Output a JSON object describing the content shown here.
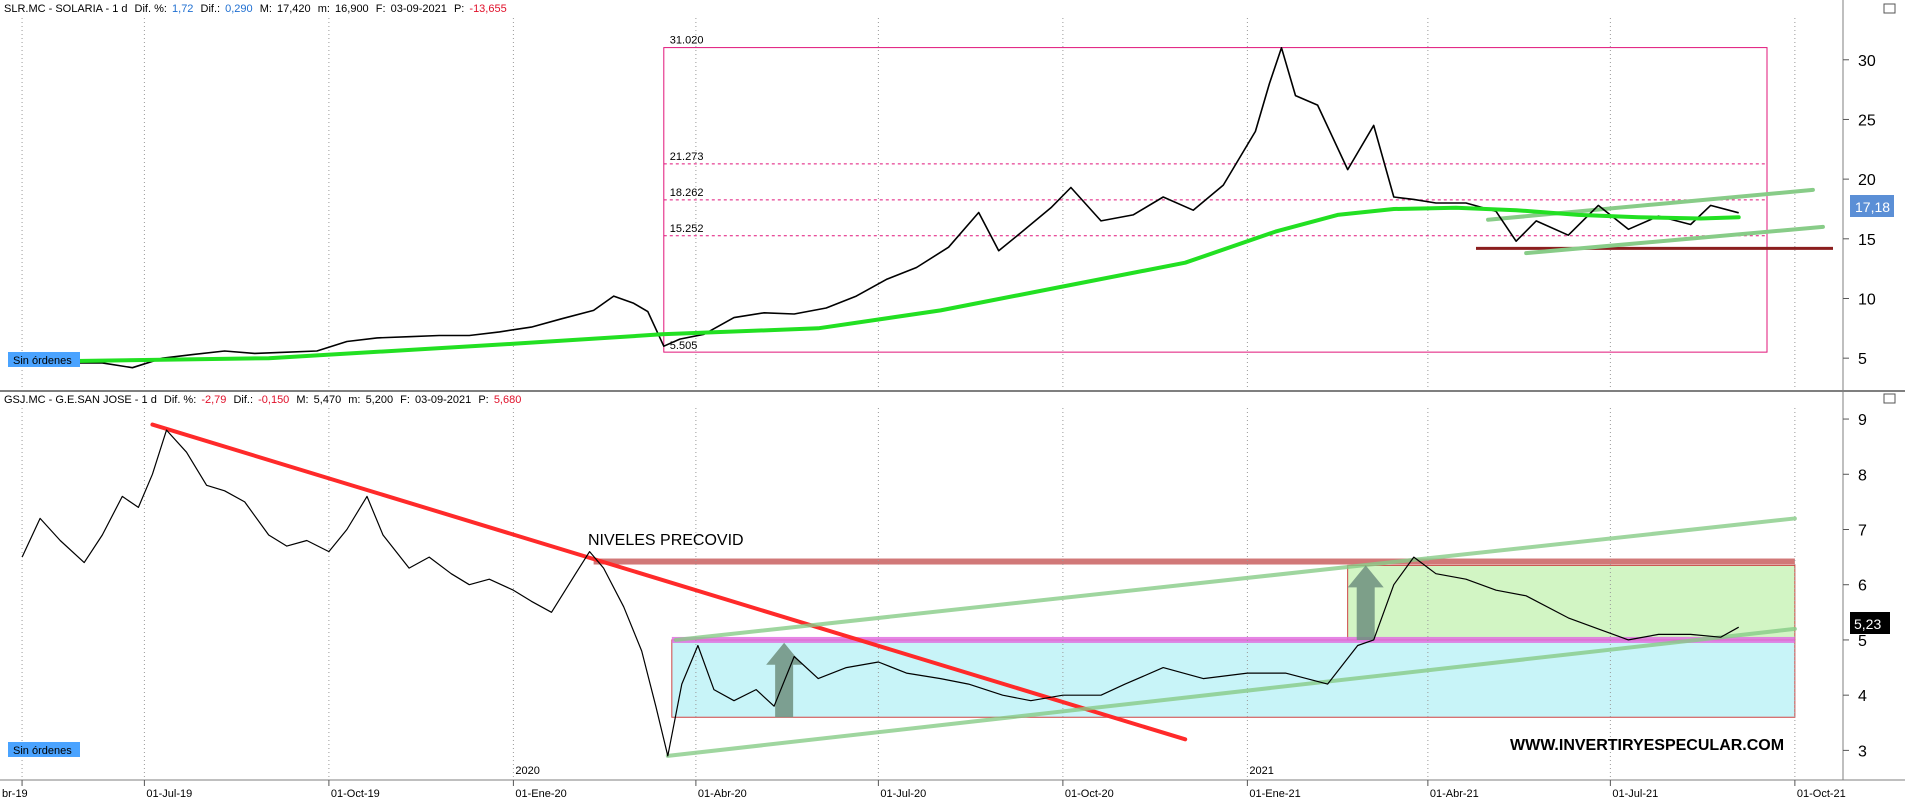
{
  "chart_data": [
    {
      "type": "line",
      "panel": "top",
      "header": {
        "symbol": "SLR.MC - SOLARIA - 1 d",
        "dif_pct_label": "Dif. %:",
        "dif_pct": "1,72",
        "dif_label": "Dif.:",
        "dif": "0,290",
        "max_label": "M:",
        "max": "17,420",
        "min_label": "m:",
        "min": "16,900",
        "date_label": "F:",
        "date": "03-09-2021",
        "p_label": "P:",
        "p": "-13,655"
      },
      "ylim": [
        2.5,
        33.5
      ],
      "y_ticks": [
        5,
        10,
        15,
        20,
        25,
        30
      ],
      "last_price": "17,18",
      "badge": "Sin órdenes",
      "fib_levels": [
        {
          "label": "31.020",
          "value": 31.02
        },
        {
          "label": "21.273",
          "value": 21.273
        },
        {
          "label": "18.262",
          "value": 18.262
        },
        {
          "label": "15.252",
          "value": 15.252
        },
        {
          "label": "5.505",
          "value": 5.505
        }
      ],
      "support_level": 14.2,
      "series": [
        {
          "role": "price",
          "points": [
            [
              "2019-05-01",
              4.7
            ],
            [
              "2019-05-20",
              4.6
            ],
            [
              "2019-06-10",
              4.6
            ],
            [
              "2019-06-25",
              4.2
            ],
            [
              "2019-07-10",
              5.0
            ],
            [
              "2019-07-25",
              5.3
            ],
            [
              "2019-08-10",
              5.6
            ],
            [
              "2019-08-25",
              5.4
            ],
            [
              "2019-09-10",
              5.5
            ],
            [
              "2019-09-25",
              5.6
            ],
            [
              "2019-10-10",
              6.4
            ],
            [
              "2019-10-25",
              6.7
            ],
            [
              "2019-11-10",
              6.8
            ],
            [
              "2019-11-25",
              6.9
            ],
            [
              "2019-12-10",
              6.9
            ],
            [
              "2019-12-25",
              7.2
            ],
            [
              "2020-01-10",
              7.6
            ],
            [
              "2020-01-25",
              8.3
            ],
            [
              "2020-02-10",
              9.0
            ],
            [
              "2020-02-20",
              10.2
            ],
            [
              "2020-03-01",
              9.6
            ],
            [
              "2020-03-08",
              8.9
            ],
            [
              "2020-03-16",
              6.0
            ],
            [
              "2020-03-24",
              6.6
            ],
            [
              "2020-04-05",
              7.0
            ],
            [
              "2020-04-20",
              8.4
            ],
            [
              "2020-05-05",
              8.8
            ],
            [
              "2020-05-20",
              8.7
            ],
            [
              "2020-06-05",
              9.2
            ],
            [
              "2020-06-20",
              10.2
            ],
            [
              "2020-07-05",
              11.6
            ],
            [
              "2020-07-20",
              12.6
            ],
            [
              "2020-08-05",
              14.3
            ],
            [
              "2020-08-20",
              17.2
            ],
            [
              "2020-08-30",
              14.0
            ],
            [
              "2020-09-10",
              15.5
            ],
            [
              "2020-09-25",
              17.6
            ],
            [
              "2020-10-05",
              19.3
            ],
            [
              "2020-10-20",
              16.5
            ],
            [
              "2020-11-05",
              17.0
            ],
            [
              "2020-11-20",
              18.5
            ],
            [
              "2020-12-05",
              17.4
            ],
            [
              "2020-12-20",
              19.5
            ],
            [
              "2021-01-05",
              24.0
            ],
            [
              "2021-01-12",
              28.0
            ],
            [
              "2021-01-18",
              31.0
            ],
            [
              "2021-01-25",
              27.0
            ],
            [
              "2021-02-05",
              26.2
            ],
            [
              "2021-02-20",
              20.8
            ],
            [
              "2021-03-05",
              24.5
            ],
            [
              "2021-03-15",
              18.5
            ],
            [
              "2021-03-25",
              18.3
            ],
            [
              "2021-04-05",
              18.0
            ],
            [
              "2021-04-20",
              18.0
            ],
            [
              "2021-05-05",
              17.3
            ],
            [
              "2021-05-15",
              14.8
            ],
            [
              "2021-05-25",
              16.5
            ],
            [
              "2021-06-10",
              15.3
            ],
            [
              "2021-06-25",
              17.8
            ],
            [
              "2021-07-10",
              15.8
            ],
            [
              "2021-07-25",
              16.9
            ],
            [
              "2021-08-10",
              16.2
            ],
            [
              "2021-08-20",
              17.8
            ],
            [
              "2021-09-03",
              17.18
            ]
          ]
        },
        {
          "role": "moving-average",
          "color": "#22e022",
          "points": [
            [
              "2019-05-01",
              4.7
            ],
            [
              "2019-09-01",
              5.0
            ],
            [
              "2020-01-01",
              6.2
            ],
            [
              "2020-03-15",
              7.0
            ],
            [
              "2020-06-01",
              7.5
            ],
            [
              "2020-08-01",
              9.0
            ],
            [
              "2020-10-01",
              11.0
            ],
            [
              "2020-12-01",
              13.0
            ],
            [
              "2021-01-15",
              15.6
            ],
            [
              "2021-02-15",
              17.0
            ],
            [
              "2021-03-15",
              17.5
            ],
            [
              "2021-04-15",
              17.6
            ],
            [
              "2021-05-15",
              17.4
            ],
            [
              "2021-06-15",
              17.0
            ],
            [
              "2021-07-15",
              16.8
            ],
            [
              "2021-08-15",
              16.7
            ],
            [
              "2021-09-03",
              16.8
            ]
          ]
        }
      ],
      "trendlines": [
        {
          "color": "#88cc88",
          "from": [
            "2021-05-01",
            16.6
          ],
          "to": [
            "2021-10-10",
            19.1
          ]
        },
        {
          "color": "#88cc88",
          "from": [
            "2021-05-20",
            13.8
          ],
          "to": [
            "2021-10-15",
            16.0
          ]
        }
      ]
    },
    {
      "type": "line",
      "panel": "bottom",
      "header": {
        "symbol": "GSJ.MC - G.E.SAN JOSE - 1 d",
        "dif_pct_label": "Dif. %:",
        "dif_pct": "-2,79",
        "dif_label": "Dif.:",
        "dif": "-0,150",
        "max_label": "M:",
        "max": "5,470",
        "min_label": "m:",
        "min": "5,200",
        "date_label": "F:",
        "date": "03-09-2021",
        "p_label": "P:",
        "p": "5,680"
      },
      "ylim": [
        2.5,
        9.2
      ],
      "y_ticks": [
        3,
        4,
        5,
        6,
        7,
        8,
        9
      ],
      "last_price": "5,23",
      "badge": "Sin órdenes",
      "annotation": "NIVELES PRECOVID",
      "watermark": "WWW.INVERTIRYESPECULAR.COM",
      "series": [
        {
          "role": "price",
          "points": [
            [
              "2019-05-01",
              6.5
            ],
            [
              "2019-05-10",
              7.2
            ],
            [
              "2019-05-20",
              6.8
            ],
            [
              "2019-06-01",
              6.4
            ],
            [
              "2019-06-10",
              6.9
            ],
            [
              "2019-06-20",
              7.6
            ],
            [
              "2019-06-28",
              7.4
            ],
            [
              "2019-07-05",
              8.0
            ],
            [
              "2019-07-12",
              8.8
            ],
            [
              "2019-07-22",
              8.4
            ],
            [
              "2019-08-01",
              7.8
            ],
            [
              "2019-08-10",
              7.7
            ],
            [
              "2019-08-20",
              7.5
            ],
            [
              "2019-09-01",
              6.9
            ],
            [
              "2019-09-10",
              6.7
            ],
            [
              "2019-09-20",
              6.8
            ],
            [
              "2019-10-01",
              6.6
            ],
            [
              "2019-10-10",
              7.0
            ],
            [
              "2019-10-20",
              7.6
            ],
            [
              "2019-10-28",
              6.9
            ],
            [
              "2019-11-10",
              6.3
            ],
            [
              "2019-11-20",
              6.5
            ],
            [
              "2019-12-01",
              6.2
            ],
            [
              "2019-12-10",
              6.0
            ],
            [
              "2019-12-20",
              6.1
            ],
            [
              "2020-01-01",
              5.9
            ],
            [
              "2020-01-10",
              5.7
            ],
            [
              "2020-01-20",
              5.5
            ],
            [
              "2020-02-01",
              6.2
            ],
            [
              "2020-02-08",
              6.6
            ],
            [
              "2020-02-15",
              6.3
            ],
            [
              "2020-02-25",
              5.6
            ],
            [
              "2020-03-05",
              4.8
            ],
            [
              "2020-03-12",
              3.8
            ],
            [
              "2020-03-18",
              2.9
            ],
            [
              "2020-03-25",
              4.2
            ],
            [
              "2020-04-02",
              4.9
            ],
            [
              "2020-04-10",
              4.1
            ],
            [
              "2020-04-20",
              3.9
            ],
            [
              "2020-05-01",
              4.1
            ],
            [
              "2020-05-10",
              3.8
            ],
            [
              "2020-05-20",
              4.7
            ],
            [
              "2020-06-01",
              4.3
            ],
            [
              "2020-06-15",
              4.5
            ],
            [
              "2020-07-01",
              4.6
            ],
            [
              "2020-07-15",
              4.4
            ],
            [
              "2020-08-01",
              4.3
            ],
            [
              "2020-08-15",
              4.2
            ],
            [
              "2020-09-01",
              4.0
            ],
            [
              "2020-09-15",
              3.9
            ],
            [
              "2020-10-01",
              4.0
            ],
            [
              "2020-10-20",
              4.0
            ],
            [
              "2020-11-01",
              4.2
            ],
            [
              "2020-11-20",
              4.5
            ],
            [
              "2020-12-10",
              4.3
            ],
            [
              "2021-01-01",
              4.4
            ],
            [
              "2021-01-20",
              4.4
            ],
            [
              "2021-02-10",
              4.2
            ],
            [
              "2021-02-25",
              4.9
            ],
            [
              "2021-03-05",
              5.0
            ],
            [
              "2021-03-15",
              6.0
            ],
            [
              "2021-03-25",
              6.5
            ],
            [
              "2021-04-05",
              6.2
            ],
            [
              "2021-04-20",
              6.1
            ],
            [
              "2021-05-05",
              5.9
            ],
            [
              "2021-05-20",
              5.8
            ],
            [
              "2021-06-10",
              5.4
            ],
            [
              "2021-06-25",
              5.2
            ],
            [
              "2021-07-10",
              5.0
            ],
            [
              "2021-07-25",
              5.1
            ],
            [
              "2021-08-10",
              5.1
            ],
            [
              "2021-08-25",
              5.05
            ],
            [
              "2021-09-03",
              5.23
            ]
          ]
        }
      ],
      "trendlines": [
        {
          "color": "#ff2a2a",
          "from": [
            "2019-07-05",
            8.9
          ],
          "to": [
            "2020-12-01",
            3.2
          ]
        },
        {
          "color": "#88cc88",
          "from": [
            "2020-03-18",
            2.9
          ],
          "to": [
            "2021-10-01",
            5.2
          ]
        },
        {
          "color": "#88cc88",
          "from": [
            "2020-03-22",
            5.0
          ],
          "to": [
            "2021-10-01",
            7.2
          ]
        }
      ],
      "zones": [
        {
          "color": "#c8f4f8",
          "from": [
            "2020-03-20",
            5.0
          ],
          "to": [
            "2021-10-01",
            3.6
          ]
        },
        {
          "color": "#d2f5c4",
          "from": [
            "2021-02-20",
            6.35
          ],
          "to": [
            "2021-10-01",
            5.0
          ]
        }
      ],
      "levels": [
        {
          "color": "#c96060",
          "value": 6.42,
          "from": "2020-02-10",
          "to": "2021-10-01"
        },
        {
          "color": "#e070e0",
          "value": 5.0,
          "from": "2020-03-20",
          "to": "2021-10-01"
        }
      ],
      "arrows": [
        {
          "date": "2020-05-15",
          "from": 3.6,
          "to": 4.95
        },
        {
          "date": "2021-03-01",
          "from": 5.0,
          "to": 6.35
        }
      ]
    }
  ],
  "x_axis": {
    "ticks": [
      {
        "date": "2019-05-01",
        "label": "br-19"
      },
      {
        "date": "2019-07-01",
        "label": "01-Jul-19"
      },
      {
        "date": "2019-10-01",
        "label": "01-Oct-19"
      },
      {
        "date": "2020-01-01",
        "label": "01-Ene-20"
      },
      {
        "date": "2020-04-01",
        "label": "01-Abr-20"
      },
      {
        "date": "2020-07-01",
        "label": "01-Jul-20"
      },
      {
        "date": "2020-10-01",
        "label": "01-Oct-20"
      },
      {
        "date": "2021-01-01",
        "label": "01-Ene-21"
      },
      {
        "date": "2021-04-01",
        "label": "01-Abr-21"
      },
      {
        "date": "2021-07-01",
        "label": "01-Jul-21"
      },
      {
        "date": "2021-10-01",
        "label": "01-Oct-21"
      }
    ],
    "year_markers": [
      {
        "date": "2020-01-01",
        "label": "2020"
      },
      {
        "date": "2021-01-01",
        "label": "2021"
      }
    ]
  },
  "colors": {
    "grid": "#999999",
    "fib": "#e0157a",
    "support": "#8b1e1e",
    "badge_bg": "#4aa3ff"
  }
}
